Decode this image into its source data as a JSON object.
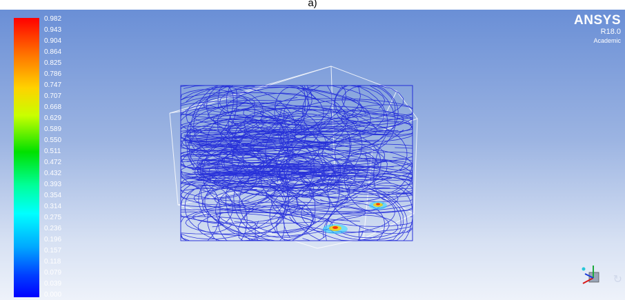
{
  "caption": "a)",
  "logo": {
    "brand": "ANSYS",
    "version": "R18.0",
    "edition": "Academic"
  },
  "legend": {
    "labels": [
      "0.982",
      "0.943",
      "0.904",
      "0.864",
      "0.825",
      "0.786",
      "0.747",
      "0.707",
      "0.668",
      "0.629",
      "0.589",
      "0.550",
      "0.511",
      "0.472",
      "0.432",
      "0.393",
      "0.354",
      "0.314",
      "0.275",
      "0.236",
      "0.196",
      "0.157",
      "0.118",
      "0.079",
      "0.039",
      "0.000"
    ],
    "min": 0.0,
    "max": 0.982,
    "colormap": [
      "#0000ff",
      "#00a8ff",
      "#00ffff",
      "#00ff9a",
      "#00e000",
      "#c8ff00",
      "#ffd200",
      "#ff6a00",
      "#ff0000"
    ]
  },
  "colors": {
    "streamline": "#1a22d8",
    "outline": "#ffffff",
    "background_top": "#6a8fd6",
    "background_bottom": "#eef2fa"
  },
  "icons": {
    "triad": "axis-triad-icon",
    "rotate": "rotate-icon"
  }
}
